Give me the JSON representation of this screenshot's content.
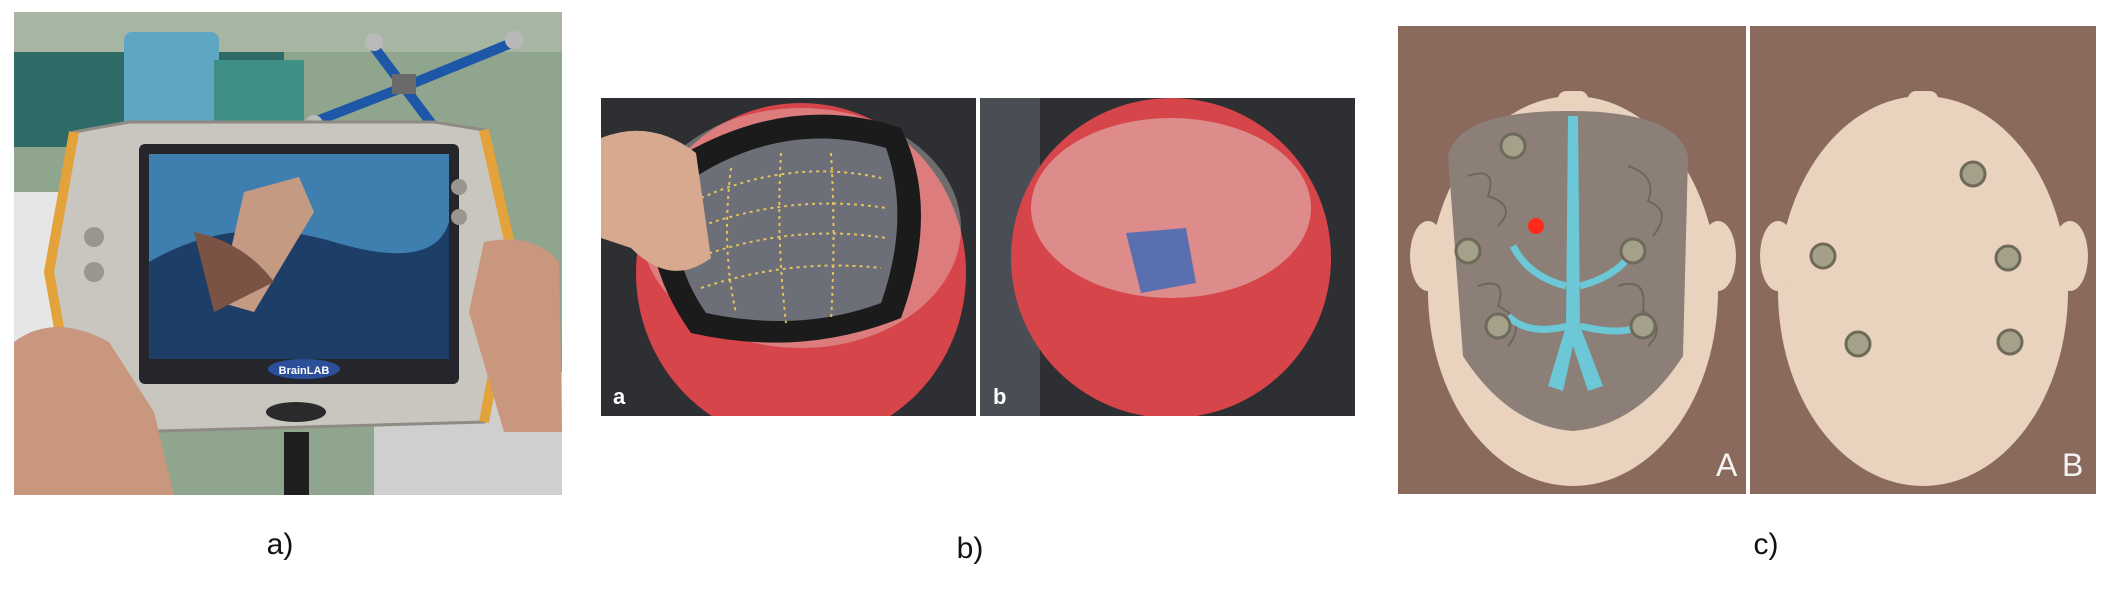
{
  "captions": {
    "a": "a)",
    "b": "b)",
    "c": "c)"
  },
  "panel_a": {
    "device_brand": "BrainLAB",
    "screen_overlay_text": "",
    "colors": {
      "wall": "#8fa58e",
      "device_body": "#c9c6c0",
      "device_accent": "#e3a23a",
      "screen_bezel": "#24262b",
      "screen": "#3f7fb0",
      "hand": "#c9967e",
      "tracker_array": "#1f57a8"
    }
  },
  "panel_b": {
    "sublabels": {
      "left": "a",
      "right": "b"
    },
    "colors": {
      "head_surface": "#d6454a",
      "mesh_cap": "#1b1b1b",
      "grid_line": "#e6c25a",
      "background": "#2d2f33",
      "patch": "#5a6fb0"
    }
  },
  "panel_c": {
    "sublabels": {
      "left": "A",
      "right": "B"
    },
    "colors": {
      "background": "#8a6a5c",
      "head": "#e9d3be",
      "brain": "#8b7f78",
      "vessels": "#6cc7d6",
      "marker": "#a5a08a",
      "target": "#ff2a1a"
    }
  }
}
